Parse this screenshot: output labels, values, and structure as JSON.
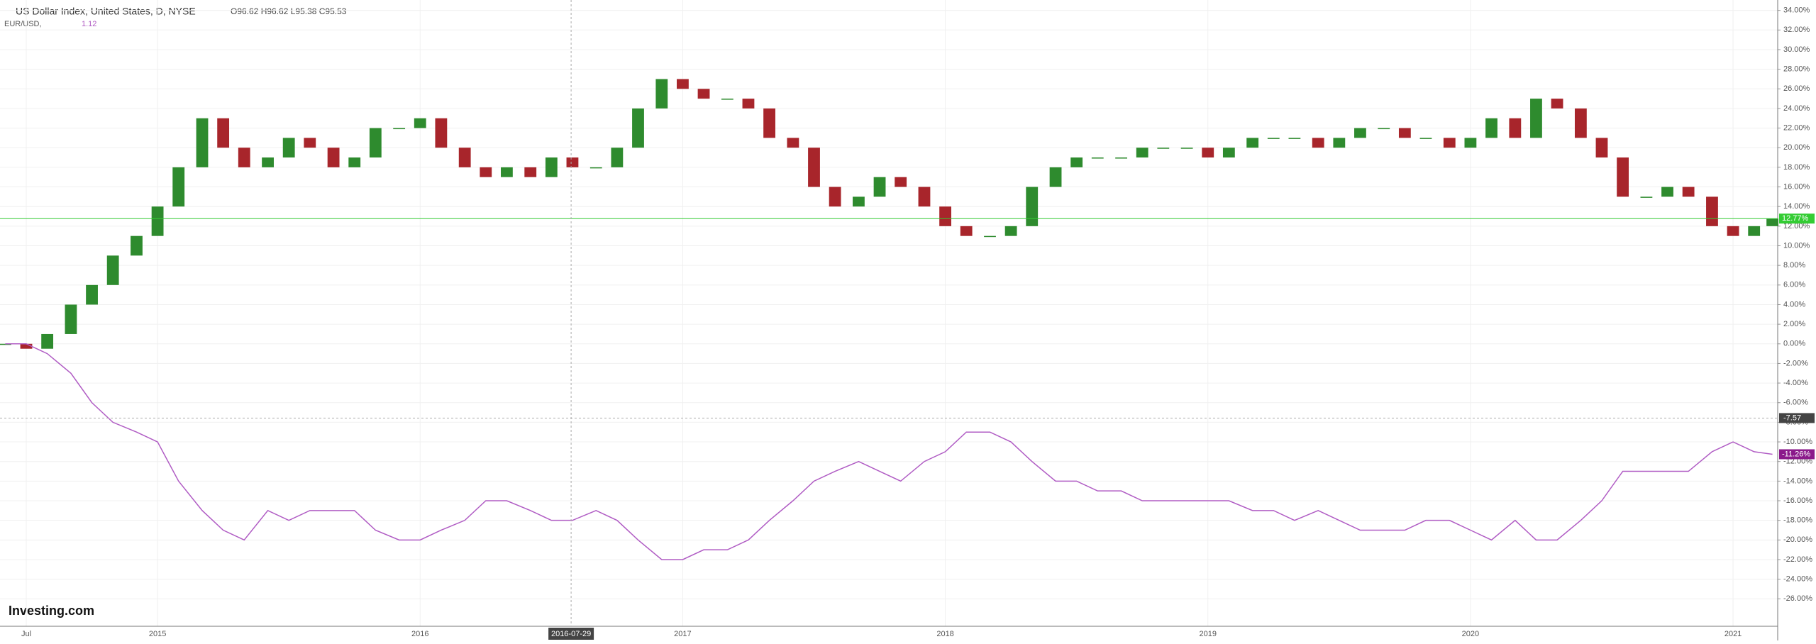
{
  "header": {
    "title": "US Dollar Index, United States, D, NYSE",
    "ohlc": "O96.62 H96.62 L95.38 C95.53",
    "second_name": "EUR/USD,",
    "second_value": "1.12"
  },
  "logo": "Investing.com",
  "chart_data": {
    "type": "candle-line",
    "x": [
      2014.42,
      2014.5,
      2014.58,
      2014.67,
      2014.75,
      2014.83,
      2014.92,
      2015.0,
      2015.08,
      2015.17,
      2015.25,
      2015.33,
      2015.42,
      2015.5,
      2015.58,
      2015.67,
      2015.75,
      2015.83,
      2015.92,
      2016.0,
      2016.08,
      2016.17,
      2016.25,
      2016.33,
      2016.42,
      2016.5,
      2016.58,
      2016.67,
      2016.75,
      2016.83,
      2016.92,
      2017.0,
      2017.08,
      2017.17,
      2017.25,
      2017.33,
      2017.42,
      2017.5,
      2017.58,
      2017.67,
      2017.75,
      2017.83,
      2017.92,
      2018.0,
      2018.08,
      2018.17,
      2018.25,
      2018.33,
      2018.42,
      2018.5,
      2018.58,
      2018.67,
      2018.75,
      2018.83,
      2018.92,
      2019.0,
      2019.08,
      2019.17,
      2019.25,
      2019.33,
      2019.42,
      2019.5,
      2019.58,
      2019.67,
      2019.75,
      2019.83,
      2019.92,
      2020.0,
      2020.08,
      2020.17,
      2020.25,
      2020.33,
      2020.42,
      2020.5,
      2020.58,
      2020.67,
      2020.75,
      2020.83,
      2020.92,
      2021.0,
      2021.08,
      2021.15
    ],
    "series": [
      {
        "name": "US Dollar Index",
        "style": "candle",
        "up_color": "#2e8b2e",
        "down_color": "#a8252b",
        "last_label": "12.77%",
        "last_color": "#33cc33",
        "values": [
          0,
          -0.5,
          1,
          4,
          6,
          9,
          11,
          14,
          18,
          23,
          20,
          18,
          19,
          21,
          20,
          18,
          19,
          22,
          22,
          23,
          20,
          18,
          17,
          18,
          17,
          19,
          18,
          18,
          20,
          24,
          27,
          26,
          25,
          25,
          24,
          21,
          20,
          16,
          14,
          15,
          17,
          16,
          14,
          12,
          11,
          11,
          12,
          16,
          18,
          19,
          19,
          19,
          20,
          20,
          20,
          19,
          20,
          21,
          21,
          21,
          20,
          21,
          22,
          22,
          21,
          21,
          20,
          21,
          23,
          21,
          25,
          24,
          21,
          19,
          15,
          15,
          16,
          15,
          12,
          11,
          12,
          12.77
        ]
      },
      {
        "name": "EUR/USD",
        "style": "line",
        "color": "#b05cc4",
        "last_label": "-11.26%",
        "last_color": "#8b1a8b",
        "values": [
          0,
          0,
          -1,
          -3,
          -6,
          -8,
          -9,
          -10,
          -14,
          -17,
          -19,
          -20,
          -17,
          -18,
          -17,
          -17,
          -17,
          -19,
          -20,
          -20,
          -19,
          -18,
          -16,
          -16,
          -17,
          -18,
          -18,
          -17,
          -18,
          -20,
          -22,
          -22,
          -21,
          -21,
          -20,
          -18,
          -16,
          -14,
          -13,
          -12,
          -13,
          -14,
          -12,
          -11,
          -9,
          -9,
          -10,
          -12,
          -14,
          -14,
          -15,
          -15,
          -16,
          -16,
          -16,
          -16,
          -16,
          -17,
          -17,
          -18,
          -17,
          -18,
          -19,
          -19,
          -19,
          -18,
          -18,
          -19,
          -20,
          -18,
          -20,
          -20,
          -18,
          -16,
          -13,
          -13,
          -13,
          -13,
          -11,
          -10,
          -11,
          -11.26
        ]
      }
    ],
    "xlim": [
      2014.4,
      2021.17
    ],
    "xticks": [
      {
        "value": 2014.5,
        "label": "Jul"
      },
      2015,
      2016,
      2017,
      2018,
      2019,
      2020,
      2021
    ],
    "ylim": [
      -28.8,
      35.06
    ],
    "yticks": [
      {
        "value": 34,
        "label": "34.00%"
      },
      {
        "value": 32,
        "label": "32.00%"
      },
      {
        "value": 30,
        "label": "30.00%"
      },
      {
        "value": 28,
        "label": "28.00%"
      },
      {
        "value": 26,
        "label": "26.00%"
      },
      {
        "value": 24,
        "label": "24.00%"
      },
      {
        "value": 22,
        "label": "22.00%"
      },
      {
        "value": 20,
        "label": "20.00%"
      },
      {
        "value": 18,
        "label": "18.00%"
      },
      {
        "value": 16,
        "label": "16.00%"
      },
      {
        "value": 14,
        "label": "14.00%"
      },
      {
        "value": 12,
        "label": "12.00%"
      },
      {
        "value": 10,
        "label": "10.00%"
      },
      {
        "value": 8,
        "label": "8.00%"
      },
      {
        "value": 6,
        "label": "6.00%"
      },
      {
        "value": 4,
        "label": "4.00%"
      },
      {
        "value": 2,
        "label": "2.00%"
      },
      {
        "value": 0,
        "label": "0.00%"
      },
      {
        "value": -2,
        "label": "-2.00%"
      },
      {
        "value": -4,
        "label": "-4.00%"
      },
      {
        "value": -6,
        "label": "-6.00%"
      },
      {
        "value": -8,
        "label": "-8.00%"
      },
      {
        "value": -10,
        "label": "-10.00%"
      },
      {
        "value": -12,
        "label": "-12.00%"
      },
      {
        "value": -14,
        "label": "-14.00%"
      },
      {
        "value": -16,
        "label": "-16.00%"
      },
      {
        "value": -18,
        "label": "-18.00%"
      },
      {
        "value": -20,
        "label": "-20.00%"
      },
      {
        "value": -22,
        "label": "-22.00%"
      },
      {
        "value": -24,
        "label": "-24.00%"
      },
      {
        "value": -26,
        "label": "-26.00%"
      }
    ],
    "crosshair": {
      "x": {
        "value": 2016.575,
        "label": "2016-07-29"
      },
      "y": -7.57
    },
    "grid": true
  }
}
